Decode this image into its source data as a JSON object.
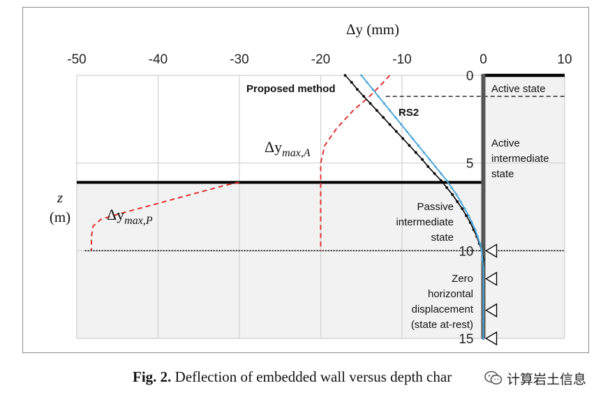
{
  "chart_data": {
    "type": "line",
    "xlabel": "Δy (mm)",
    "ylabel_line1": "z",
    "ylabel_line2": "(m)",
    "xlim": [
      -50,
      10
    ],
    "ylim": [
      0,
      15
    ],
    "x_ticks": [
      -50,
      -40,
      -30,
      -20,
      -10,
      0,
      10
    ],
    "y_ticks": [
      0,
      5,
      10,
      15
    ],
    "grid": true,
    "series": [
      {
        "name": "Proposed method",
        "color": "#000000",
        "points": [
          [
            -17,
            0
          ],
          [
            -16.2,
            0.4
          ],
          [
            -15.5,
            0.8
          ],
          [
            -14.7,
            1.2
          ],
          [
            -13.9,
            1.6
          ],
          [
            -13.1,
            2.0
          ],
          [
            -12.3,
            2.4
          ],
          [
            -11.5,
            2.8
          ],
          [
            -10.7,
            3.2
          ],
          [
            -9.9,
            3.6
          ],
          [
            -9.1,
            4.0
          ],
          [
            -8.3,
            4.4
          ],
          [
            -7.5,
            4.8
          ],
          [
            -6.8,
            5.2
          ],
          [
            -6.0,
            5.6
          ],
          [
            -5.2,
            6.0
          ],
          [
            -4.5,
            6.4
          ],
          [
            -3.8,
            6.8
          ],
          [
            -3.2,
            7.2
          ],
          [
            -2.6,
            7.6
          ],
          [
            -2.1,
            8.0
          ],
          [
            -1.6,
            8.4
          ],
          [
            -1.2,
            8.8
          ],
          [
            -0.8,
            9.2
          ],
          [
            -0.5,
            9.6
          ],
          [
            -0.2,
            10.0
          ],
          [
            0,
            10.5
          ],
          [
            0,
            11
          ],
          [
            0,
            12
          ],
          [
            0,
            13
          ],
          [
            0,
            14
          ],
          [
            0,
            15
          ]
        ]
      },
      {
        "name": "RS2",
        "color": "#4fa8d8",
        "points": [
          [
            -15,
            0
          ],
          [
            -14.3,
            0.4
          ],
          [
            -13.6,
            0.8
          ],
          [
            -12.9,
            1.2
          ],
          [
            -12.2,
            1.6
          ],
          [
            -11.5,
            2.0
          ],
          [
            -10.8,
            2.4
          ],
          [
            -10.1,
            2.8
          ],
          [
            -9.4,
            3.2
          ],
          [
            -8.7,
            3.6
          ],
          [
            -8.0,
            4.0
          ],
          [
            -7.3,
            4.4
          ],
          [
            -6.6,
            4.8
          ],
          [
            -5.9,
            5.2
          ],
          [
            -5.2,
            5.6
          ],
          [
            -4.5,
            6.0
          ],
          [
            -3.9,
            6.4
          ],
          [
            -3.3,
            6.8
          ],
          [
            -2.8,
            7.2
          ],
          [
            -2.3,
            7.6
          ],
          [
            -1.8,
            8.0
          ],
          [
            -1.4,
            8.4
          ],
          [
            -1.0,
            8.8
          ],
          [
            -0.7,
            9.2
          ],
          [
            -0.4,
            9.6
          ],
          [
            -0.2,
            10.0
          ],
          [
            -0.1,
            10.5
          ],
          [
            0,
            11
          ],
          [
            0,
            12
          ],
          [
            0,
            13
          ],
          [
            0,
            14
          ],
          [
            0,
            15
          ]
        ]
      }
    ],
    "envelope_active": {
      "color": "#e03030",
      "points": [
        [
          -11.5,
          0
        ],
        [
          -12.5,
          0.5
        ],
        [
          -14,
          1.2
        ],
        [
          -16,
          2.0
        ],
        [
          -18,
          3.0
        ],
        [
          -19.5,
          4.0
        ],
        [
          -20,
          5.0
        ],
        [
          -20,
          7
        ],
        [
          -20,
          10
        ]
      ]
    },
    "envelope_passive": {
      "color": "#e03030",
      "points": [
        [
          -30,
          6.1
        ],
        [
          -32,
          6.3
        ],
        [
          -36,
          6.8
        ],
        [
          -40,
          7.3
        ],
        [
          -44,
          7.8
        ],
        [
          -47,
          8.2
        ],
        [
          -48,
          8.6
        ],
        [
          -48.2,
          9.2
        ],
        [
          -48.2,
          10
        ]
      ]
    },
    "wall": {
      "x": 0,
      "z_top": 0,
      "z_bottom": 15
    },
    "ground_surface": {
      "z": 0,
      "x_from": 0,
      "x_to": 10
    },
    "excavation_level": {
      "z": 6.1,
      "x_from": -50,
      "x_to": 0
    },
    "active_state_line": {
      "z": 1.2,
      "x_from": -12,
      "x_to": 10
    },
    "toe_line": {
      "z": 10,
      "x_from": -49,
      "x_to": 10
    },
    "supports_z": [
      10,
      11.6,
      13.4,
      15
    ],
    "annotations": {
      "proposed_method": "Proposed method",
      "rs2": "RS2",
      "dy_max_a_base": "Δy",
      "dy_max_a_sub": "max,A",
      "dy_max_p_base": "Δy",
      "dy_max_p_sub": "max,P"
    },
    "state_labels": {
      "active_state": "Active state",
      "active_intermediate_1": "Active",
      "active_intermediate_2": "intermediate",
      "active_intermediate_3": "state",
      "passive_intermediate_1": "Passive",
      "passive_intermediate_2": "intermediate",
      "passive_intermediate_3": "state",
      "zero_1": "Zero",
      "zero_2": "horizontal",
      "zero_3": "displacement",
      "zero_4": "(state at-rest)"
    }
  },
  "caption": {
    "label": "Fig. 2.",
    "text": " Deflection of embedded wall versus depth char"
  },
  "watermark": {
    "text": "计算岩土信息"
  }
}
